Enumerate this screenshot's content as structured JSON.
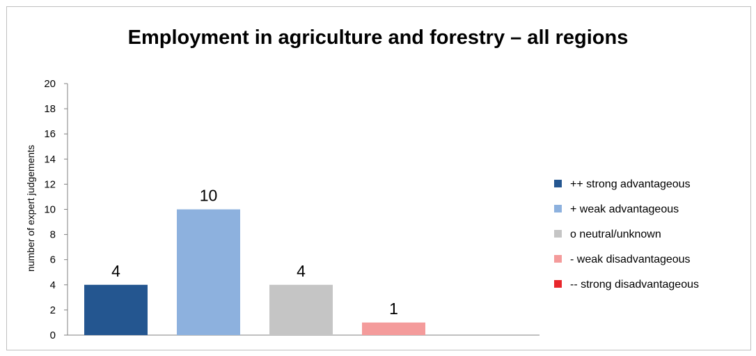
{
  "chart_data": {
    "type": "bar",
    "title": "Employment in agriculture and forestry – all regions",
    "ylabel": "number of expert judgements",
    "xlabel": "",
    "ylim": [
      0,
      20
    ],
    "yticks": [
      0,
      2,
      4,
      6,
      8,
      10,
      12,
      14,
      16,
      18,
      20
    ],
    "grid": false,
    "legend_position": "right",
    "series": [
      {
        "name": "++ strong advantageous",
        "value": 4,
        "color": "#245690"
      },
      {
        "name": "+ weak advantageous",
        "value": 10,
        "color": "#8db1de"
      },
      {
        "name": "o neutral/unknown",
        "value": 4,
        "color": "#c5c5c5"
      },
      {
        "name": "- weak disadvantageous",
        "value": 1,
        "color": "#f49b9b"
      },
      {
        "name": "-- strong disadvantageous",
        "value": 0,
        "color": "#e8262b"
      }
    ]
  }
}
